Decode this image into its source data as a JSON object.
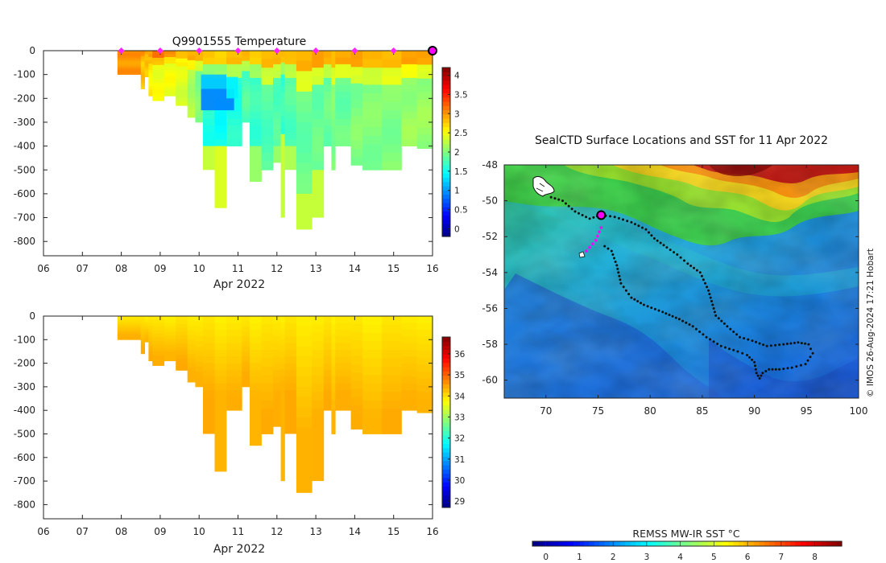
{
  "chart_data": [
    {
      "type": "heatmap",
      "title": "Q9901555  Temperature",
      "xlabel": "Apr 2022",
      "x_ticks": [
        "06",
        "07",
        "08",
        "09",
        "10",
        "11",
        "12",
        "13",
        "14",
        "15",
        "16"
      ],
      "xlim_days": [
        6,
        16
      ],
      "y_ticks": [
        "0",
        "-100",
        "-200",
        "-300",
        "-400",
        "-500",
        "-600",
        "-700",
        "-800"
      ],
      "ylim": [
        -860,
        0
      ],
      "colorbar": {
        "ticks": [
          "0",
          "0.5",
          "1",
          "1.5",
          "2",
          "2.5",
          "3",
          "3.5",
          "4"
        ],
        "range": [
          -0.2,
          4.2
        ]
      },
      "profile_markers_day": [
        8.0,
        9.0,
        10.0,
        11.0,
        12.0,
        13.0,
        14.0,
        15.0,
        16.0
      ],
      "profiles": [
        {
          "t0": 7.9,
          "t1": 8.5,
          "depth": -100,
          "surface": 3.0,
          "deep": 3.0
        },
        {
          "t0": 8.5,
          "t1": 8.6,
          "depth": -160,
          "surface": 3.0,
          "deep": 2.8
        },
        {
          "t0": 8.6,
          "t1": 8.7,
          "depth": -110,
          "surface": 3.0,
          "deep": 2.8
        },
        {
          "t0": 8.7,
          "t1": 8.8,
          "depth": -190,
          "surface": 3.0,
          "deep": 2.6
        },
        {
          "t0": 8.8,
          "t1": 9.1,
          "depth": -210,
          "surface": 3.1,
          "deep": 2.5
        },
        {
          "t0": 9.1,
          "t1": 9.4,
          "depth": -190,
          "surface": 3.0,
          "deep": 2.5
        },
        {
          "t0": 9.4,
          "t1": 9.7,
          "depth": -230,
          "surface": 2.9,
          "deep": 2.4
        },
        {
          "t0": 9.7,
          "t1": 9.9,
          "depth": -280,
          "surface": 2.9,
          "deep": 2.2
        },
        {
          "t0": 9.9,
          "t1": 10.1,
          "depth": -300,
          "surface": 2.8,
          "deep": 2.0
        },
        {
          "t0": 10.1,
          "t1": 10.4,
          "depth": -400,
          "surface": 2.8,
          "deep": 1.6,
          "tail": [
            -400,
            -500,
            2.3
          ]
        },
        {
          "t0": 10.4,
          "t1": 10.7,
          "depth": -400,
          "surface": 2.8,
          "deep": 1.5,
          "tail": [
            -400,
            -660,
            2.4
          ]
        },
        {
          "t0": 10.7,
          "t1": 11.1,
          "depth": -400,
          "surface": 2.8,
          "deep": 1.6
        },
        {
          "t0": 11.1,
          "t1": 11.3,
          "depth": -300,
          "surface": 2.8,
          "deep": 1.8
        },
        {
          "t0": 11.3,
          "t1": 11.6,
          "depth": -400,
          "surface": 2.8,
          "deep": 1.7,
          "tail": [
            -400,
            -550,
            2.1
          ]
        },
        {
          "t0": 11.6,
          "t1": 11.9,
          "depth": -500,
          "surface": 2.9,
          "deep": 1.8
        },
        {
          "t0": 11.9,
          "t1": 12.1,
          "depth": -400,
          "surface": 2.8,
          "deep": 1.8,
          "tail": [
            -400,
            -470,
            2.1
          ]
        },
        {
          "t0": 12.1,
          "t1": 12.2,
          "depth": -350,
          "surface": 2.8,
          "deep": 1.7,
          "tail": [
            -350,
            -700,
            2.3
          ]
        },
        {
          "t0": 12.2,
          "t1": 12.5,
          "depth": -400,
          "surface": 2.9,
          "deep": 1.8,
          "tail": [
            -400,
            -500,
            2.2
          ]
        },
        {
          "t0": 12.5,
          "t1": 12.9,
          "depth": -600,
          "surface": 2.9,
          "deep": 1.9,
          "tail": [
            -600,
            -750,
            2.3
          ]
        },
        {
          "t0": 12.9,
          "t1": 13.2,
          "depth": -500,
          "surface": 2.9,
          "deep": 1.9,
          "tail": [
            -500,
            -700,
            2.3
          ]
        },
        {
          "t0": 13.2,
          "t1": 13.4,
          "depth": -400,
          "surface": 2.9,
          "deep": 1.9
        },
        {
          "t0": 13.4,
          "t1": 13.5,
          "depth": -500,
          "surface": 2.9,
          "deep": 2.0
        },
        {
          "t0": 13.5,
          "t1": 13.9,
          "depth": -400,
          "surface": 2.9,
          "deep": 1.9
        },
        {
          "t0": 13.9,
          "t1": 14.2,
          "depth": -480,
          "surface": 2.9,
          "deep": 2.0
        },
        {
          "t0": 14.2,
          "t1": 14.7,
          "depth": -500,
          "surface": 2.9,
          "deep": 2.0
        },
        {
          "t0": 14.7,
          "t1": 15.2,
          "depth": -500,
          "surface": 2.9,
          "deep": 2.0
        },
        {
          "t0": 15.2,
          "t1": 15.6,
          "depth": -400,
          "surface": 2.9,
          "deep": 2.1
        },
        {
          "t0": 15.6,
          "t1": 16.0,
          "depth": -410,
          "surface": 2.9,
          "deep": 2.1
        }
      ]
    },
    {
      "type": "heatmap",
      "title": "",
      "xlabel": "Apr 2022",
      "x_ticks": [
        "06",
        "07",
        "08",
        "09",
        "10",
        "11",
        "12",
        "13",
        "14",
        "15",
        "16"
      ],
      "xlim_days": [
        6,
        16
      ],
      "y_ticks": [
        "0",
        "-100",
        "-200",
        "-300",
        "-400",
        "-500",
        "-600",
        "-700",
        "-800"
      ],
      "ylim": [
        -860,
        0
      ],
      "colorbar": {
        "ticks": [
          "29",
          "30",
          "31",
          "32",
          "33",
          "34",
          "35",
          "36"
        ],
        "range": [
          28.7,
          36.8
        ]
      },
      "salinity_surface": 33.9,
      "salinity_deep": 34.4
    },
    {
      "type": "scatter",
      "title": "SealCTD Surface Locations and SST for 11 Apr 2022",
      "x_ticks": [
        "70",
        "75",
        "80",
        "85",
        "90",
        "95",
        "100"
      ],
      "xlim": [
        66,
        100
      ],
      "y_ticks": [
        "-48",
        "-50",
        "-52",
        "-54",
        "-56",
        "-58",
        "-60"
      ],
      "ylim": [
        -61,
        -48
      ],
      "colorbar": {
        "label": "REMSS MW-IR SST °C",
        "ticks": [
          "0",
          "1",
          "2",
          "3",
          "4",
          "5",
          "6",
          "7",
          "8"
        ],
        "range": [
          -0.4,
          8.8
        ]
      },
      "track_black": [
        [
          70.5,
          -49.8
        ],
        [
          71.6,
          -50.0
        ],
        [
          72.8,
          -50.6
        ],
        [
          74.2,
          -51.0
        ],
        [
          75.3,
          -50.8
        ],
        [
          76.6,
          -50.9
        ],
        [
          78.2,
          -51.2
        ],
        [
          79.6,
          -51.6
        ],
        [
          80.4,
          -52.1
        ],
        [
          81.6,
          -52.6
        ],
        [
          82.6,
          -53.0
        ],
        [
          83.6,
          -53.5
        ],
        [
          84.8,
          -54.0
        ],
        [
          85.6,
          -55.0
        ],
        [
          86.3,
          -56.4
        ],
        [
          87.4,
          -57.0
        ],
        [
          88.6,
          -57.6
        ],
        [
          89.8,
          -57.8
        ],
        [
          91.2,
          -58.1
        ],
        [
          92.8,
          -58.0
        ],
        [
          94.2,
          -57.9
        ],
        [
          95.2,
          -58.0
        ],
        [
          95.6,
          -58.5
        ],
        [
          94.9,
          -59.1
        ],
        [
          93.6,
          -59.3
        ],
        [
          92.4,
          -59.4
        ],
        [
          91.4,
          -59.4
        ],
        [
          90.8,
          -59.6
        ],
        [
          90.5,
          -59.9
        ],
        [
          90.2,
          -59.6
        ],
        [
          90.0,
          -59.0
        ],
        [
          89.3,
          -58.6
        ],
        [
          88.4,
          -58.4
        ],
        [
          86.8,
          -58.1
        ],
        [
          85.4,
          -57.6
        ],
        [
          84.1,
          -57.0
        ],
        [
          82.8,
          -56.6
        ],
        [
          81.2,
          -56.2
        ],
        [
          79.4,
          -55.8
        ],
        [
          78.2,
          -55.4
        ],
        [
          77.2,
          -54.6
        ],
        [
          76.8,
          -53.6
        ],
        [
          76.3,
          -52.8
        ],
        [
          75.3,
          -52.4
        ]
      ],
      "track_magenta": [
        [
          75.3,
          -51.5
        ],
        [
          74.8,
          -52.2
        ],
        [
          74.2,
          -52.6
        ],
        [
          73.6,
          -53.0
        ]
      ],
      "marker_position": [
        75.3,
        -50.8
      ],
      "credit": "© IMOS 26-Aug-2024 17:21 Hobart"
    }
  ]
}
